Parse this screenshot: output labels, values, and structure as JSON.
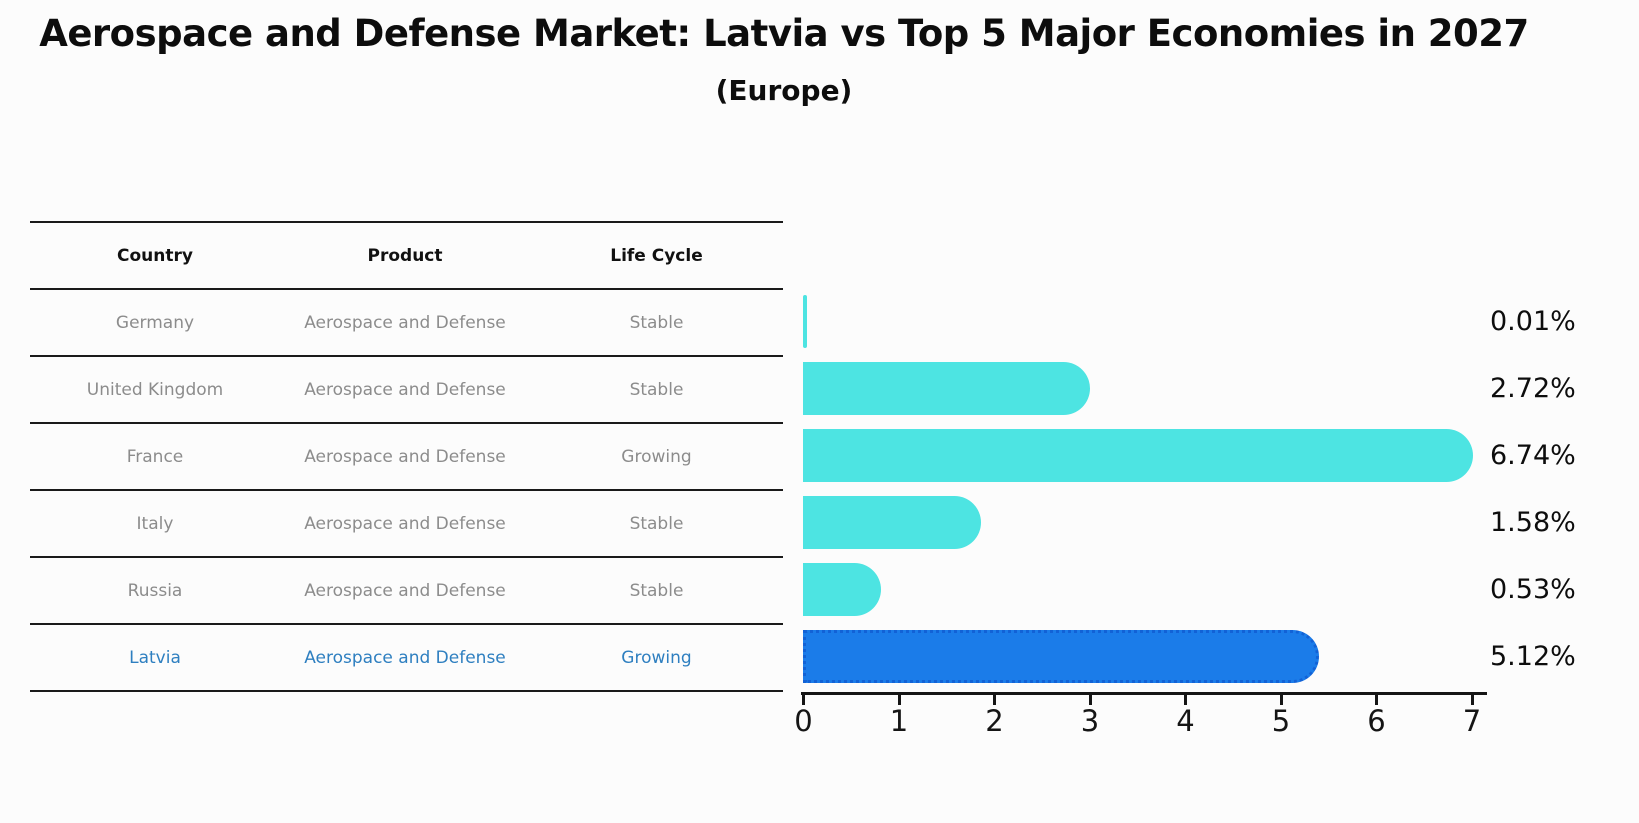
{
  "title": "Aerospace and Defense Market: Latvia vs Top 5 Major Economies in 2027",
  "subtitle": "(Europe)",
  "table": {
    "headers": [
      "Country",
      "Product",
      "Life Cycle"
    ],
    "rows": [
      {
        "country": "Germany",
        "product": "Aerospace and Defense",
        "life_cycle": "Stable",
        "highlight": false
      },
      {
        "country": "United Kingdom",
        "product": "Aerospace and Defense",
        "life_cycle": "Stable",
        "highlight": false
      },
      {
        "country": "France",
        "product": "Aerospace and Defense",
        "life_cycle": "Growing",
        "highlight": false
      },
      {
        "country": "Italy",
        "product": "Aerospace and Defense",
        "life_cycle": "Stable",
        "highlight": false
      },
      {
        "country": "Russia",
        "product": "Aerospace and Defense",
        "life_cycle": "Stable",
        "highlight": false
      },
      {
        "country": "Latvia",
        "product": "Aerospace and Defense",
        "life_cycle": "Growing",
        "highlight": true
      }
    ]
  },
  "chart_data": {
    "type": "bar",
    "orientation": "horizontal",
    "title": "Aerospace and Defense Market: Latvia vs Top 5 Major Economies in 2027 (Europe)",
    "categories": [
      "Germany",
      "United Kingdom",
      "France",
      "Italy",
      "Russia",
      "Latvia"
    ],
    "values": [
      0.01,
      2.72,
      6.74,
      1.58,
      0.53,
      5.12
    ],
    "value_labels": [
      "0.01%",
      "2.72%",
      "6.74%",
      "1.58%",
      "0.53%",
      "5.12%"
    ],
    "xticks": [
      "0",
      "1",
      "2",
      "3",
      "4",
      "5",
      "6",
      "7"
    ],
    "xlim": [
      0,
      7
    ],
    "xlabel": "",
    "ylabel": "",
    "grid": false,
    "legend": false,
    "highlight_index": 5,
    "bar_color": "#4de4e2",
    "highlight_color": "#1b7ce9",
    "highlight_border_color": "#1262d6",
    "highlight_text_color": "#2e7fc0",
    "axis_color": "#151515"
  }
}
